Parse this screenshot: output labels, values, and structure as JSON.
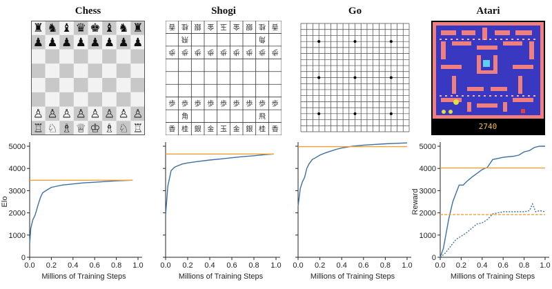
{
  "panels": {
    "chess": {
      "title": "Chess"
    },
    "shogi": {
      "title": "Shogi"
    },
    "go": {
      "title": "Go"
    },
    "atari": {
      "title": "Atari",
      "score": "2740"
    }
  },
  "boards": {
    "chess_back_black": [
      "♜",
      "♞",
      "♝",
      "♛",
      "♚",
      "♝",
      "♞",
      "♜"
    ],
    "chess_back_white": [
      "♖",
      "♘",
      "♗",
      "♕",
      "♔",
      "♗",
      "♘",
      "♖"
    ],
    "chess_pawn_black": "♟",
    "chess_pawn_white": "♙",
    "shogi_pawn": "歩",
    "shogi_bishop": "角",
    "shogi_rook": "飛",
    "shogi_back_row": [
      "香",
      "桂",
      "銀",
      "金",
      "玉",
      "金",
      "銀",
      "桂",
      "香"
    ]
  },
  "colors": {
    "alphazero_line": "#3b6ea5",
    "baseline_line": "#f0a030",
    "atari_wall": "#f08080",
    "atari_bg": "#3838c0"
  },
  "chart_data": [
    {
      "type": "line",
      "game": "Chess",
      "ylabel": "Elo",
      "xlabel": "Millions of Training Steps",
      "xlim": [
        0.0,
        1.0
      ],
      "ylim": [
        0,
        5000
      ],
      "xticks": [
        "0.0",
        "0.2",
        "0.4",
        "0.6",
        "0.8",
        "1.0"
      ],
      "yticks": [
        "0",
        "1000",
        "2000",
        "3000",
        "4000",
        "5000"
      ],
      "grid": false,
      "series": [
        {
          "style": "solid",
          "color": "#3b6ea5",
          "x": [
            0.0,
            0.01,
            0.03,
            0.05,
            0.08,
            0.1,
            0.12,
            0.15,
            0.2,
            0.25,
            0.3,
            0.4,
            0.5,
            0.6,
            0.7,
            0.8,
            0.9,
            0.95
          ],
          "y": [
            600,
            1300,
            1700,
            1900,
            2400,
            2700,
            2900,
            3000,
            3150,
            3200,
            3250,
            3300,
            3350,
            3380,
            3410,
            3440,
            3460,
            3470
          ]
        },
        {
          "style": "solid",
          "color": "#f0a030",
          "x": [
            0.0,
            0.95
          ],
          "y": [
            3470,
            3470
          ]
        }
      ]
    },
    {
      "type": "line",
      "game": "Shogi",
      "ylabel": "",
      "xlabel": "Millions of Training Steps",
      "xlim": [
        0.0,
        1.0
      ],
      "ylim": [
        0,
        5000
      ],
      "xticks": [
        "0.0",
        "0.2",
        "0.4",
        "0.6",
        "0.8",
        "1.0"
      ],
      "grid": false,
      "series": [
        {
          "style": "solid",
          "color": "#3b6ea5",
          "x": [
            0.0,
            0.02,
            0.05,
            0.08,
            0.1,
            0.15,
            0.2,
            0.3,
            0.4,
            0.5,
            0.6,
            0.7,
            0.8,
            0.9,
            0.98
          ],
          "y": [
            1900,
            3200,
            3900,
            4050,
            4100,
            4200,
            4250,
            4320,
            4380,
            4430,
            4480,
            4530,
            4570,
            4620,
            4650
          ]
        },
        {
          "style": "solid",
          "color": "#f0a030",
          "x": [
            0.0,
            0.98
          ],
          "y": [
            4650,
            4650
          ]
        }
      ]
    },
    {
      "type": "line",
      "game": "Go",
      "ylabel": "",
      "xlabel": "Millions of Training Steps",
      "xlim": [
        0.0,
        1.0
      ],
      "ylim": [
        0,
        5000
      ],
      "xticks": [
        "0.0",
        "0.2",
        "0.4",
        "0.6",
        "0.8",
        "1.0"
      ],
      "grid": false,
      "series": [
        {
          "style": "solid",
          "color": "#3b6ea5",
          "x": [
            0.0,
            0.02,
            0.04,
            0.06,
            0.08,
            0.1,
            0.13,
            0.16,
            0.2,
            0.25,
            0.3,
            0.35,
            0.4,
            0.5,
            0.6,
            0.7,
            0.8,
            0.9,
            1.0
          ],
          "y": [
            2300,
            3100,
            3400,
            3600,
            4000,
            4200,
            4400,
            4480,
            4600,
            4700,
            4780,
            4860,
            4920,
            5000,
            5050,
            5080,
            5110,
            5130,
            5150
          ]
        },
        {
          "style": "solid",
          "color": "#f0a030",
          "x": [
            0.0,
            1.0
          ],
          "y": [
            4980,
            4980
          ]
        }
      ]
    },
    {
      "type": "line",
      "game": "Atari",
      "ylabel": "Reward",
      "xlabel": "Millions of Training Steps",
      "xlim": [
        0.0,
        1.0
      ],
      "ylim": [
        0,
        5000
      ],
      "xticks": [
        "0.0",
        "0.2",
        "0.4",
        "0.6",
        "0.8",
        "1.0"
      ],
      "yticks": [
        "0",
        "1000",
        "2000",
        "3000",
        "4000",
        "5000"
      ],
      "grid": false,
      "series": [
        {
          "style": "solid",
          "color": "#3b6ea5",
          "x": [
            0.0,
            0.03,
            0.08,
            0.12,
            0.18,
            0.22,
            0.25,
            0.3,
            0.4,
            0.45,
            0.5,
            0.55,
            0.6,
            0.7,
            0.75,
            0.8,
            0.85,
            0.9,
            0.95,
            1.0
          ],
          "y": [
            0,
            400,
            1700,
            2500,
            3250,
            3250,
            3400,
            3600,
            3950,
            4050,
            4400,
            4450,
            4500,
            4550,
            4600,
            4750,
            4800,
            4950,
            5000,
            5000
          ]
        },
        {
          "style": "dotted",
          "color": "#3b6ea5",
          "x": [
            0.0,
            0.05,
            0.1,
            0.15,
            0.2,
            0.25,
            0.3,
            0.35,
            0.4,
            0.45,
            0.5,
            0.6,
            0.7,
            0.8,
            0.85,
            0.88,
            0.91,
            0.95,
            1.0
          ],
          "y": [
            0,
            200,
            500,
            800,
            950,
            1100,
            1300,
            1500,
            1550,
            1700,
            1950,
            2050,
            2050,
            2050,
            2100,
            2400,
            2050,
            2100,
            2050
          ]
        },
        {
          "style": "solid",
          "color": "#f0a030",
          "x": [
            0.0,
            1.0
          ],
          "y": [
            4020,
            4020
          ]
        },
        {
          "style": "dashed",
          "color": "#f0a030",
          "x": [
            0.0,
            1.0
          ],
          "y": [
            1920,
            1920
          ]
        }
      ]
    }
  ]
}
